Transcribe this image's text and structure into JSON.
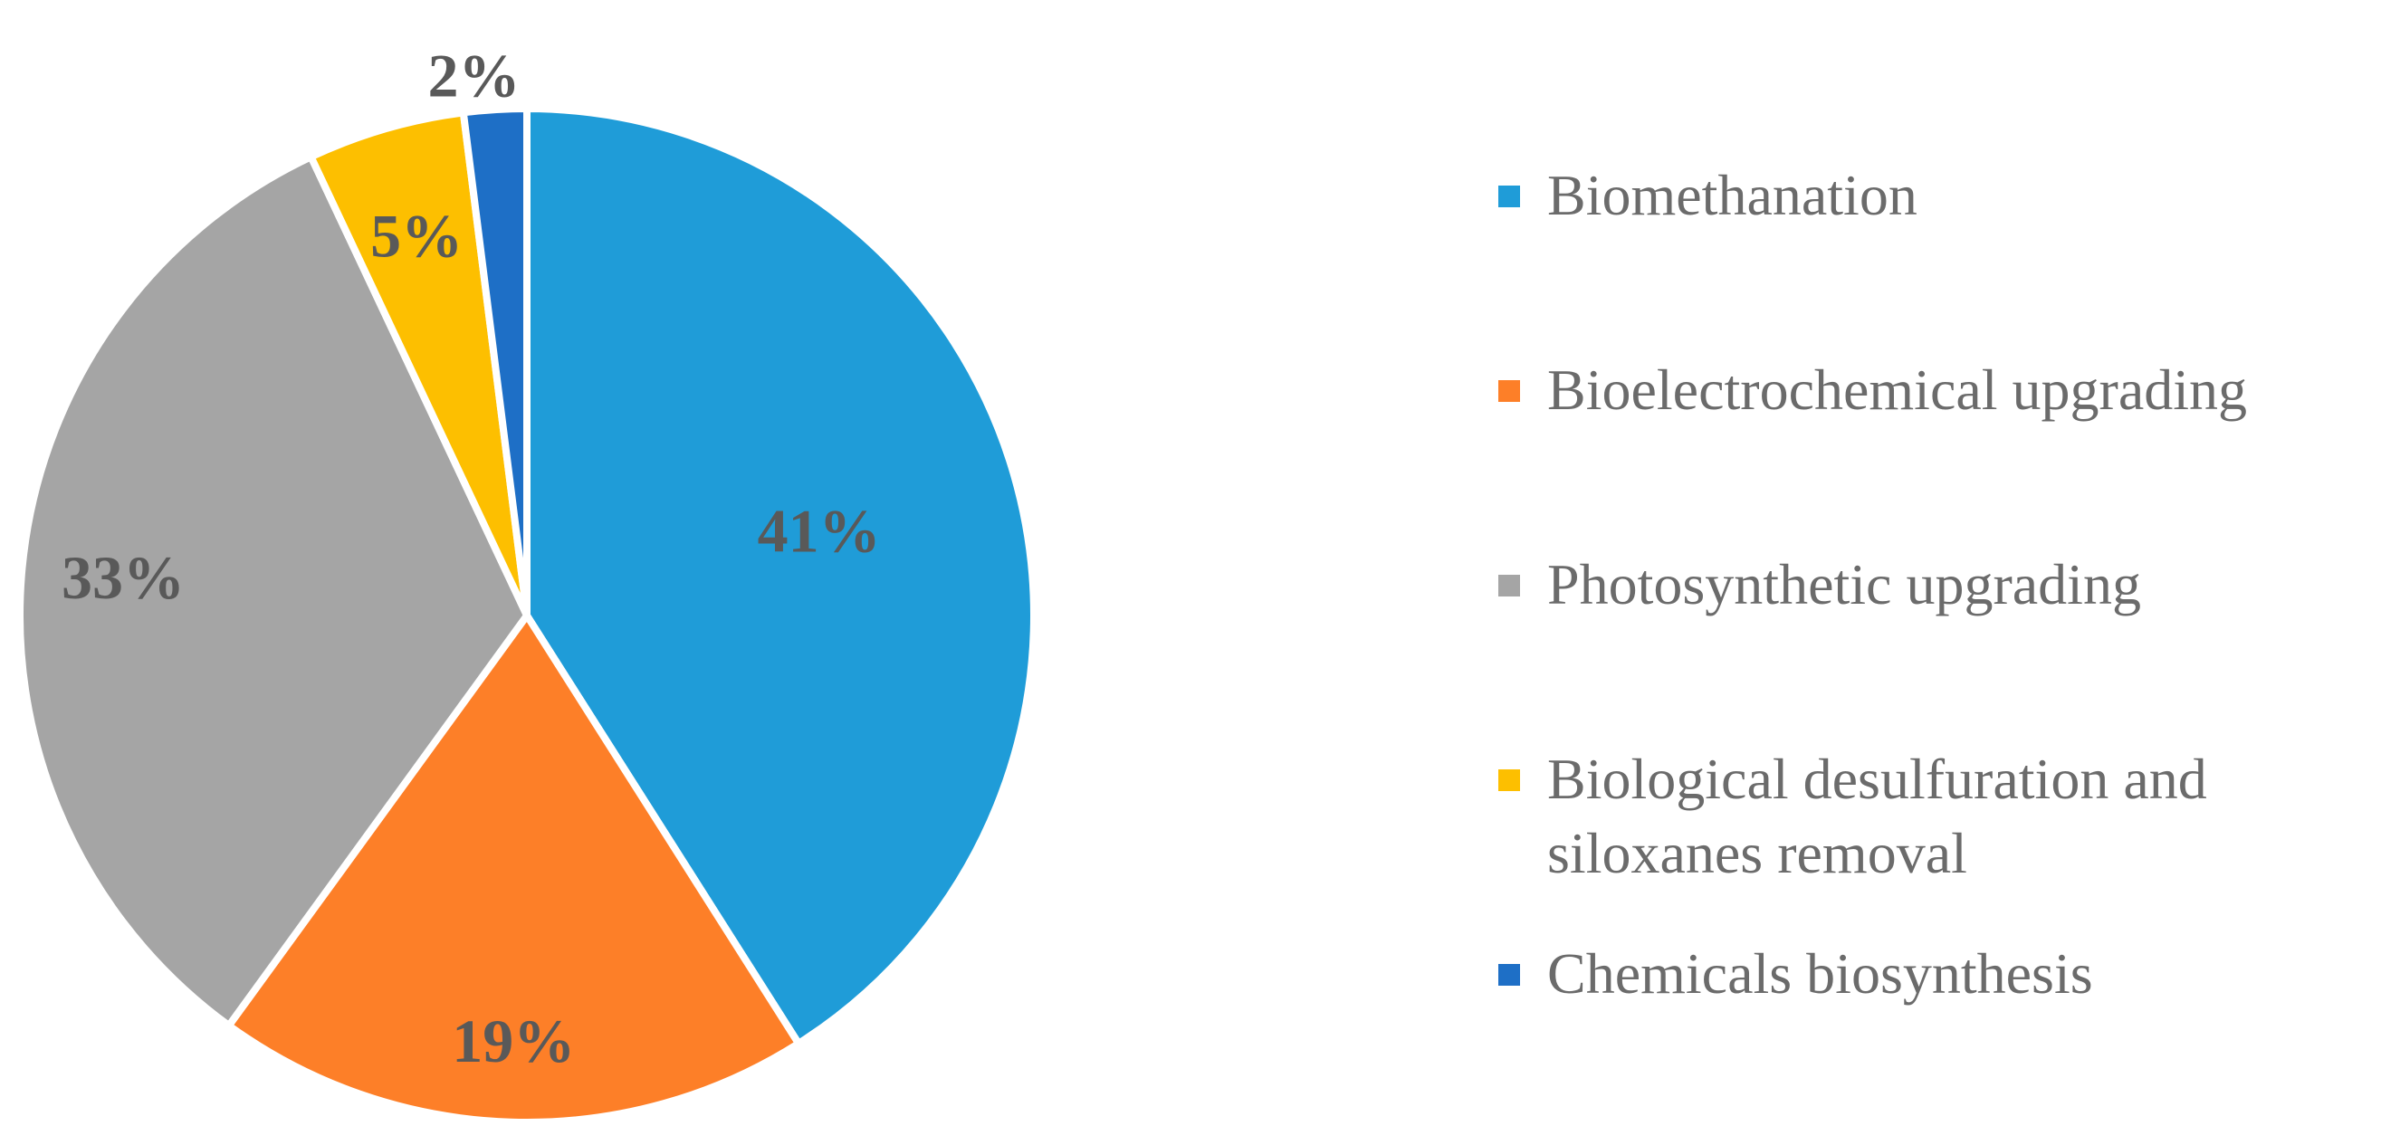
{
  "chart_data": {
    "type": "pie",
    "slices": [
      {
        "name": "Biomethanation",
        "value": 41,
        "label": "41%",
        "color": "#1f9cd8"
      },
      {
        "name": "Bioelectrochemical upgrading",
        "value": 19,
        "label": "19%",
        "color": "#fd7f28"
      },
      {
        "name": "Photosynthetic upgrading",
        "value": 33,
        "label": "33%",
        "color": "#a5a5a5"
      },
      {
        "name": "Biological desulfuration and\nsiloxanes removal",
        "value": 5,
        "label": "5%",
        "color": "#fdbf00"
      },
      {
        "name": "Chemicals biosynthesis",
        "value": 2,
        "label": "2%",
        "color": "#1e6fc6"
      }
    ],
    "start_angle": "12 o'clock",
    "direction": "clockwise",
    "legend_position": "right",
    "label_color": "#595959",
    "legend_text_color": "#6b6b6b"
  }
}
